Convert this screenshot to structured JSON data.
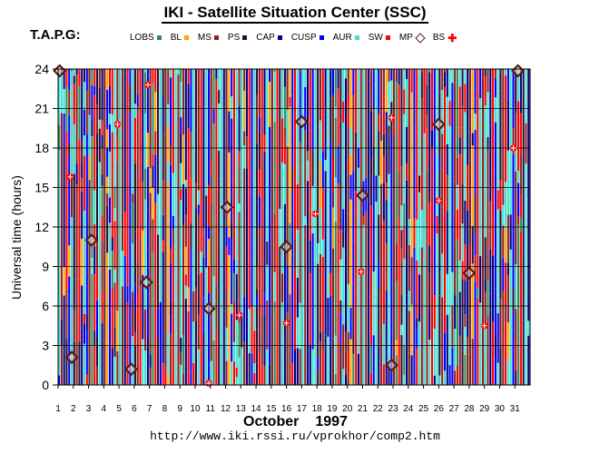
{
  "header": {
    "title": "IKI - Satellite Situation Center (SSC)",
    "tapg": "T.A.P.G:"
  },
  "legend": [
    {
      "label": "LOBS",
      "color": "#2e8b57",
      "kind": "swatch"
    },
    {
      "label": "BL",
      "color": "#ffa500",
      "kind": "swatch"
    },
    {
      "label": "MS",
      "color": "#8b2323",
      "kind": "swatch"
    },
    {
      "label": "PS",
      "color": "#2b0f3a",
      "kind": "swatch"
    },
    {
      "label": "CAP",
      "color": "#000080",
      "kind": "swatch"
    },
    {
      "label": "CUSP",
      "color": "#0000ff",
      "kind": "swatch"
    },
    {
      "label": "AUR",
      "color": "#40e0d0",
      "kind": "swatch"
    },
    {
      "label": "SW",
      "color": "#ff0000",
      "kind": "swatch"
    },
    {
      "label": "MP",
      "color": "#5a1a14",
      "kind": "diamond"
    },
    {
      "label": "BS",
      "color": "#ff0000",
      "kind": "plus"
    }
  ],
  "footer": {
    "url": "http://www.iki.rssi.ru/vprokhor/comp2.htm"
  },
  "chart_data": {
    "type": "scatter",
    "title": "IKI - Satellite Situation Center (SSC)",
    "xlabel_month": "October",
    "xlabel_year": "1997",
    "ylabel": "Universal time (hours)",
    "xlim": [
      1,
      32
    ],
    "ylim": [
      0,
      24
    ],
    "x_ticks": [
      "1",
      "2",
      "3",
      "4",
      "5",
      "6",
      "7",
      "8",
      "9",
      "10",
      "11",
      "12",
      "13",
      "14",
      "15",
      "16",
      "17",
      "18",
      "19",
      "20",
      "21",
      "22",
      "23",
      "24",
      "25",
      "26",
      "27",
      "28",
      "29",
      "30",
      "31"
    ],
    "y_ticks": [
      0,
      3,
      6,
      9,
      12,
      15,
      18,
      21,
      24
    ],
    "grid": true,
    "region_colors": {
      "LOBS": "#2e8b57",
      "BL": "#ffa500",
      "MS": "#8b2323",
      "PS": "#2b0f3a",
      "CAP": "#000080",
      "CUSP": "#0000ff",
      "AUR": "#40e0d0",
      "SW": "#ff0000"
    },
    "strip_cycle": [
      "AUR",
      "MS",
      "CAP",
      "SW",
      "CUSP",
      "AUR",
      "PS",
      "MS",
      "SW",
      "CAP",
      "AUR",
      "CUSP",
      "MS",
      "LOBS",
      "SW",
      "PS",
      "AUR",
      "CAP",
      "MS",
      "BL",
      "CUSP",
      "SW",
      "AUR",
      "MS"
    ],
    "series": [
      {
        "name": "MP",
        "marker": "diamond",
        "points": [
          [
            1.1,
            24.2
          ],
          [
            1.9,
            2.1
          ],
          [
            3.2,
            11.0
          ],
          [
            5.8,
            1.2
          ],
          [
            6.8,
            7.8
          ],
          [
            10.9,
            5.8
          ],
          [
            12.1,
            13.5
          ],
          [
            16.0,
            10.5
          ],
          [
            17.0,
            20.0
          ],
          [
            21.0,
            14.4
          ],
          [
            22.9,
            1.5
          ],
          [
            26.0,
            19.8
          ],
          [
            28.0,
            8.5
          ],
          [
            31.2,
            24.2
          ]
        ]
      },
      {
        "name": "BS",
        "marker": "plus",
        "points": [
          [
            1.8,
            15.8
          ],
          [
            4.9,
            19.8
          ],
          [
            6.9,
            22.8
          ],
          [
            10.9,
            0.0
          ],
          [
            12.9,
            5.3
          ],
          [
            16.0,
            4.7
          ],
          [
            17.9,
            13.0
          ],
          [
            20.9,
            8.6
          ],
          [
            22.9,
            20.3
          ],
          [
            26.0,
            14.0
          ],
          [
            29.0,
            4.5
          ],
          [
            30.9,
            18.0
          ]
        ]
      }
    ]
  }
}
